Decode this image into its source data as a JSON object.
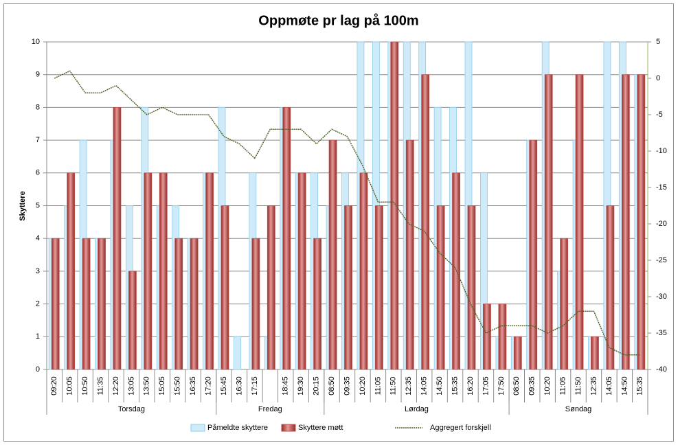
{
  "chart_data": {
    "type": "bar-line",
    "title": "Oppmøte pr lag på 100m",
    "y_label": "Skyttere",
    "groups": [
      {
        "label": "Torsdag",
        "categories": [
          "09:20",
          "10:05",
          "10:50",
          "11:35",
          "12:20",
          "13:05",
          "13:50",
          "15:05",
          "15:50",
          "16:35",
          "17:20"
        ]
      },
      {
        "label": "Fredag",
        "categories": [
          "15:45",
          "16:30",
          "17:15",
          null,
          "18:45",
          "19:30",
          "20:15"
        ]
      },
      {
        "label": "Lørdag",
        "categories": [
          "08:50",
          "09:35",
          "10:20",
          "11:05",
          "11:50",
          "12:35",
          "14:05",
          "14:50",
          "15:35",
          "16:20",
          "17:05",
          "17:50"
        ]
      },
      {
        "label": "Søndag",
        "categories": [
          "08:50",
          "09:35",
          "10:20",
          "11:05",
          "11:50",
          "12:35",
          "14:05",
          "14:50",
          "15:35"
        ]
      }
    ],
    "series": [
      {
        "name": "Påmeldte skyttere",
        "type": "bar",
        "color": "#cfeaf8",
        "values": [
          4,
          5,
          7,
          4,
          7,
          5,
          8,
          5,
          5,
          4,
          6,
          8,
          1,
          6,
          1,
          8,
          6,
          6,
          5,
          6,
          10,
          10,
          10,
          10,
          10,
          8,
          8,
          10,
          6,
          1,
          1,
          7,
          10,
          3,
          7,
          1,
          10,
          10,
          9
        ]
      },
      {
        "name": "Skyttere møtt",
        "type": "bar",
        "color": "#c0504d",
        "values": [
          4,
          6,
          4,
          4,
          8,
          3,
          6,
          6,
          4,
          4,
          6,
          5,
          0,
          4,
          5,
          8,
          6,
          4,
          7,
          5,
          6,
          5,
          10,
          7,
          9,
          5,
          6,
          5,
          2,
          2,
          1,
          7,
          9,
          4,
          9,
          1,
          5,
          9,
          9
        ]
      },
      {
        "name": "Aggregert forskjell",
        "type": "line",
        "axis": "y2",
        "color": "#4f6228",
        "values": [
          0,
          1,
          -2,
          -2,
          -1,
          -3,
          -5,
          -4,
          -5,
          -5,
          -5,
          -8,
          -9,
          -11,
          -7,
          -7,
          -7,
          -9,
          -7,
          -8,
          -12,
          -17,
          -17,
          -20,
          -21,
          -24,
          -26,
          -31,
          -35,
          -34,
          -34,
          -34,
          -35,
          -34,
          -32,
          -32,
          -37,
          -38,
          -38
        ]
      }
    ],
    "ylim": [
      0,
      10
    ],
    "yticks": [
      0,
      1,
      2,
      3,
      4,
      5,
      6,
      7,
      8,
      9,
      10
    ],
    "y2lim": [
      -40,
      5
    ],
    "y2ticks": [
      -40,
      -35,
      -30,
      -25,
      -20,
      -15,
      -10,
      -5,
      0,
      5
    ],
    "grid": true,
    "legend": "bottom"
  }
}
